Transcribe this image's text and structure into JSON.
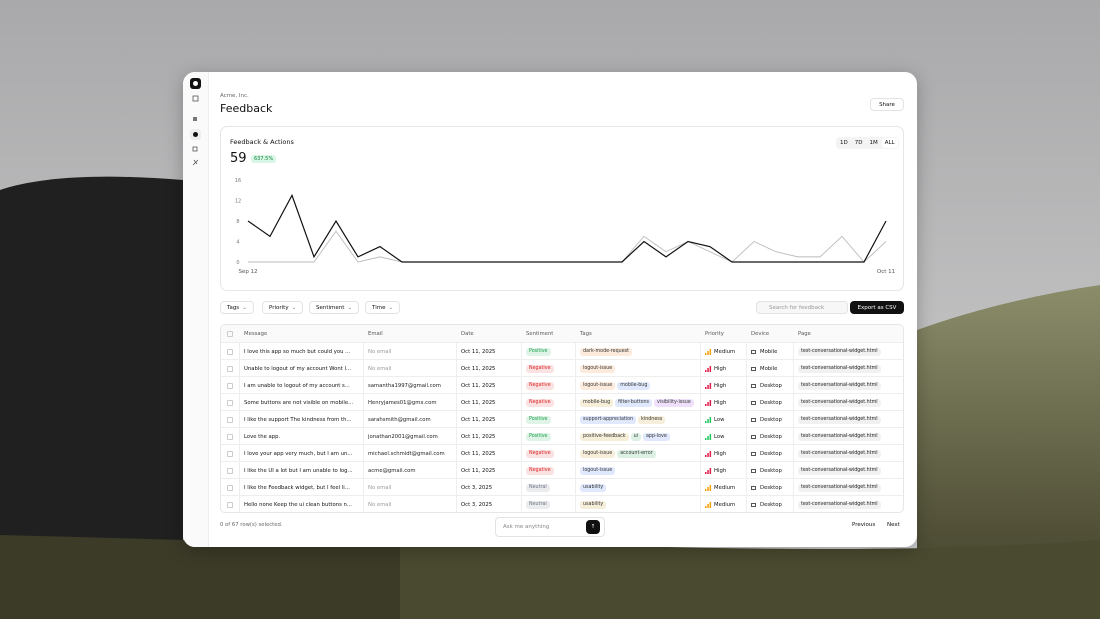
{
  "header": {
    "org": "Acme, Inc.",
    "title": "Feedback",
    "share": "Share"
  },
  "chart_data": {
    "type": "line",
    "title": "Feedback & Actions",
    "total": "59",
    "change": "637.5%",
    "ranges": [
      "1D",
      "7D",
      "1M",
      "ALL"
    ],
    "categories": [
      "Sep 12",
      null,
      null,
      null,
      null,
      null,
      null,
      null,
      null,
      null,
      null,
      null,
      null,
      null,
      null,
      null,
      null,
      null,
      null,
      null,
      null,
      null,
      null,
      null,
      null,
      null,
      null,
      null,
      null,
      "Oct 11"
    ],
    "series": [
      {
        "color": "#111111",
        "values": [
          8,
          5,
          13,
          1,
          8,
          1,
          3,
          0,
          0,
          0,
          0,
          0,
          0,
          0,
          0,
          0,
          0,
          0,
          4,
          1,
          4,
          3,
          0,
          0,
          0,
          0,
          0,
          0,
          0,
          8
        ]
      },
      {
        "color": "#bbbbbb",
        "values": [
          0,
          0,
          0,
          0,
          6,
          0,
          1,
          0,
          0,
          0,
          0,
          0,
          0,
          0,
          0,
          0,
          0,
          0,
          5,
          2,
          4,
          2,
          0,
          4,
          2,
          1,
          1,
          5,
          0,
          4
        ]
      }
    ],
    "ylim": [
      0,
      16
    ],
    "yticks": [
      0,
      4,
      8,
      12,
      16
    ],
    "grid": false
  },
  "filters": [
    "Tags",
    "Priority",
    "Sentiment",
    "Time"
  ],
  "search": "Search for feedback",
  "export": "Export as CSV",
  "table": {
    "columns": [
      "Message",
      "Email",
      "Date",
      "Sentiment",
      "Tags",
      "Priority",
      "Device",
      "Page"
    ],
    "rows": [
      {
        "message": "I love this app so much but could you ...",
        "email": "No email",
        "date": "Oct 11, 2025",
        "sentiment": {
          "label": "Positive",
          "color": "#16a34a"
        },
        "tags": [
          {
            "label": "dark-mode-request",
            "color": "#ea7a1a"
          }
        ],
        "priority": {
          "label": "Medium",
          "color": "#f59e0b"
        },
        "device": "Mobile",
        "page": "test-conversational-widget.html"
      },
      {
        "message": "Unable to logout of my account Wont l...",
        "email": "No email",
        "date": "Oct 11, 2025",
        "sentiment": {
          "label": "Negative",
          "color": "#dc2626"
        },
        "tags": [
          {
            "label": "logout-issue",
            "color": "#ea7a1a"
          }
        ],
        "priority": {
          "label": "High",
          "color": "#e11d48"
        },
        "device": "Mobile",
        "page": "test-conversational-widget.html"
      },
      {
        "message": "I am unable to logout of my account s...",
        "email": "samantha1997@gmail.com",
        "date": "Oct 11, 2025",
        "sentiment": {
          "label": "Negative",
          "color": "#dc2626"
        },
        "tags": [
          {
            "label": "logout-issue",
            "color": "#ea7a1a"
          },
          {
            "label": "mobile-bug",
            "color": "#2563eb"
          }
        ],
        "priority": {
          "label": "High",
          "color": "#e11d48"
        },
        "device": "Desktop",
        "page": "test-conversational-widget.html"
      },
      {
        "message": "Some buttons are not visible on mobile...",
        "email": "Henryjames01@gmx.com",
        "date": "Oct 11, 2025",
        "sentiment": {
          "label": "Negative",
          "color": "#dc2626"
        },
        "tags": [
          {
            "label": "mobile-bug",
            "color": "#ca8a04"
          },
          {
            "label": "filter-buttons",
            "color": "#2563eb"
          },
          {
            "label": "visibility-issue",
            "color": "#9333ea"
          }
        ],
        "priority": {
          "label": "High",
          "color": "#e11d48"
        },
        "device": "Desktop",
        "page": "test-conversational-widget.html"
      },
      {
        "message": "I like the support The kindness from th...",
        "email": "sarahsmith@gmail.com",
        "date": "Oct 11, 2025",
        "sentiment": {
          "label": "Positive",
          "color": "#16a34a"
        },
        "tags": [
          {
            "label": "support-appreciation",
            "color": "#2563eb"
          },
          {
            "label": "kindness",
            "color": "#ca8a04"
          }
        ],
        "priority": {
          "label": "Low",
          "color": "#22c55e"
        },
        "device": "Desktop",
        "page": "test-conversational-widget.html"
      },
      {
        "message": "Love the app.",
        "email": "jonathan2001@gmail.com",
        "date": "Oct 11, 2025",
        "sentiment": {
          "label": "Positive",
          "color": "#16a34a"
        },
        "tags": [
          {
            "label": "positive-feedback",
            "color": "#ca8a04"
          },
          {
            "label": "ui",
            "color": "#16a34a"
          },
          {
            "label": "app-love",
            "color": "#2563eb"
          }
        ],
        "priority": {
          "label": "Low",
          "color": "#22c55e"
        },
        "device": "Desktop",
        "page": "test-conversational-widget.html"
      },
      {
        "message": "I love your app very much, but I am un...",
        "email": "michael.schmidt@gmail.com",
        "date": "Oct 11, 2025",
        "sentiment": {
          "label": "Negative",
          "color": "#dc2626"
        },
        "tags": [
          {
            "label": "logout-issue",
            "color": "#ca8a04"
          },
          {
            "label": "account-error",
            "color": "#16a34a"
          }
        ],
        "priority": {
          "label": "High",
          "color": "#e11d48"
        },
        "device": "Desktop",
        "page": "test-conversational-widget.html"
      },
      {
        "message": "I like the UI a lot but I am unable to log...",
        "email": "acme@gmail.com",
        "date": "Oct 11, 2025",
        "sentiment": {
          "label": "Negative",
          "color": "#dc2626"
        },
        "tags": [
          {
            "label": "logout-issue",
            "color": "#2563eb"
          }
        ],
        "priority": {
          "label": "High",
          "color": "#e11d48"
        },
        "device": "Desktop",
        "page": "test-conversational-widget.html"
      },
      {
        "message": "I like the Feedback widget, but I feel li...",
        "email": "No email",
        "date": "Oct 3, 2025",
        "sentiment": {
          "label": "Neutral",
          "color": "#6b7280"
        },
        "tags": [
          {
            "label": "usability",
            "color": "#2563eb"
          }
        ],
        "priority": {
          "label": "Medium",
          "color": "#f59e0b"
        },
        "device": "Desktop",
        "page": "test-conversational-widget.html"
      },
      {
        "message": "Hello none Keep the ui clean buttons n...",
        "email": "No email",
        "date": "Oct 3, 2025",
        "sentiment": {
          "label": "Neutral",
          "color": "#6b7280"
        },
        "tags": [
          {
            "label": "usability",
            "color": "#ca8a04"
          }
        ],
        "priority": {
          "label": "Medium",
          "color": "#f59e0b"
        },
        "device": "Desktop",
        "page": "test-conversational-widget.html"
      }
    ]
  },
  "footer": {
    "selected": "0 of 67 row(s) selected.",
    "ask": "Ask me anything",
    "previous": "Previous",
    "next": "Next"
  }
}
